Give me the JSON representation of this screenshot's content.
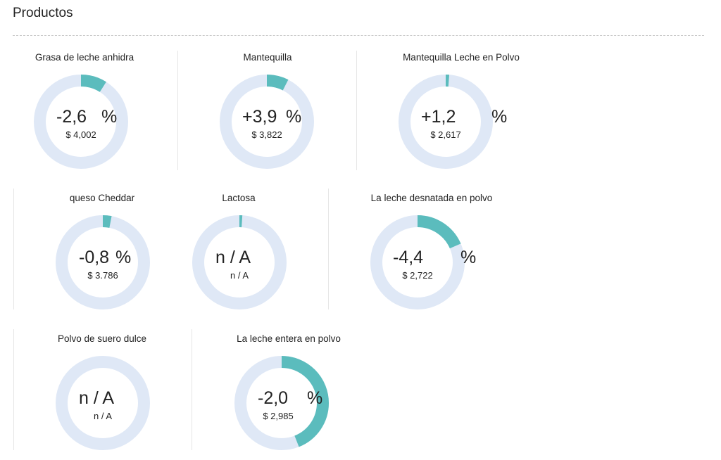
{
  "page": {
    "title": "Productos"
  },
  "colors": {
    "ring_track": "#dfe8f6",
    "ring_fill": "#5bbcbd",
    "text": "#222222",
    "divider": "#e6e6e6"
  },
  "chart_data": {
    "type": "donut",
    "items": [
      {
        "name": "Grasa de leche anhidra",
        "change_label": "-2,6",
        "percent_sign": "%",
        "change": -2.6,
        "price": "$ 4,002",
        "fill_fraction": 0.09
      },
      {
        "name": "Mantequilla",
        "change_label": "+3,9",
        "percent_sign": "%",
        "change": 3.9,
        "price": "$ 3,822",
        "fill_fraction": 0.075
      },
      {
        "name": "Mantequilla Leche en Polvo",
        "change_label": "+1,2",
        "percent_sign": "%",
        "change": 1.2,
        "price": "$ 2,617",
        "fill_fraction": 0.012
      },
      {
        "name": "queso Cheddar",
        "change_label": "-0,8",
        "percent_sign": "%",
        "change": -0.8,
        "price": "$ 3.786",
        "fill_fraction": 0.03
      },
      {
        "name": "Lactosa",
        "change_label": "n / A",
        "percent_sign": "",
        "change": null,
        "price": "n / A",
        "fill_fraction": 0.01
      },
      {
        "name": "La leche desnatada en polvo",
        "change_label": "-4,4",
        "percent_sign": "%",
        "change": -4.4,
        "price": "$ 2,722",
        "fill_fraction": 0.185
      },
      {
        "name": "Polvo de suero dulce",
        "change_label": "n / A",
        "percent_sign": "",
        "change": null,
        "price": "n / A",
        "fill_fraction": 0
      },
      {
        "name": "La leche entera en polvo",
        "change_label": "-2,0",
        "percent_sign": "%",
        "change": -2.0,
        "price": "$ 2,985",
        "fill_fraction": 0.44
      }
    ]
  }
}
